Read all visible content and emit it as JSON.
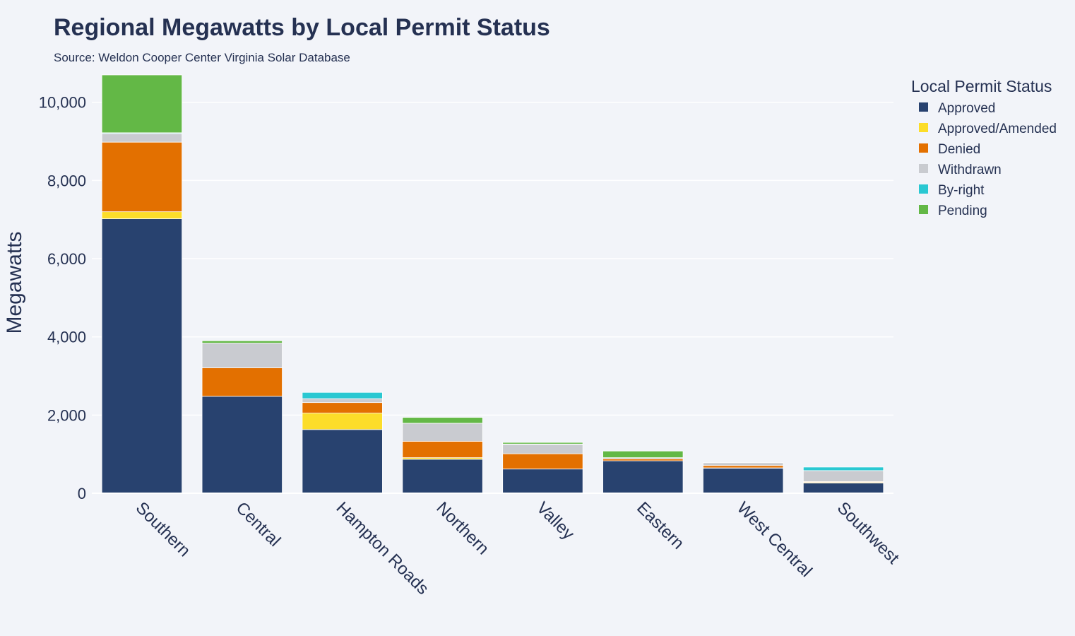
{
  "chart_data": {
    "type": "bar",
    "stacked": true,
    "title": "Regional Megawatts by Local Permit Status",
    "subtitle": "Source: Weldon Cooper Center Virginia Solar Database",
    "xlabel": "",
    "ylabel": "Megawatts",
    "ylim": [
      0,
      10700
    ],
    "yticks": [
      0,
      2000,
      4000,
      6000,
      8000,
      10000
    ],
    "ytick_labels": [
      "0",
      "2,000",
      "4,000",
      "6,000",
      "8,000",
      "10,000"
    ],
    "grid": true,
    "legend": {
      "title": "Local Permit Status",
      "placement": "right"
    },
    "categories": [
      "Southern",
      "Central",
      "Hampton Roads",
      "Northern",
      "Valley",
      "Eastern",
      "West Central",
      "Southwest"
    ],
    "series": [
      {
        "name": "Approved",
        "color": "#28426f",
        "values": [
          7020,
          2480,
          1630,
          870,
          620,
          830,
          640,
          260
        ]
      },
      {
        "name": "Approved/Amended",
        "color": "#fcdd29",
        "values": [
          180,
          0,
          420,
          40,
          0,
          0,
          10,
          20
        ]
      },
      {
        "name": "Denied",
        "color": "#e37000",
        "values": [
          1780,
          730,
          270,
          420,
          390,
          50,
          60,
          20
        ]
      },
      {
        "name": "Withdrawn",
        "color": "#c9cbd0",
        "values": [
          220,
          630,
          100,
          460,
          240,
          30,
          70,
          280
        ]
      },
      {
        "name": "By-right",
        "color": "#2ac8d2",
        "values": [
          20,
          0,
          160,
          0,
          10,
          0,
          0,
          90
        ]
      },
      {
        "name": "Pending",
        "color": "#63b846",
        "values": [
          1480,
          60,
          0,
          150,
          40,
          170,
          0,
          0
        ]
      }
    ]
  }
}
